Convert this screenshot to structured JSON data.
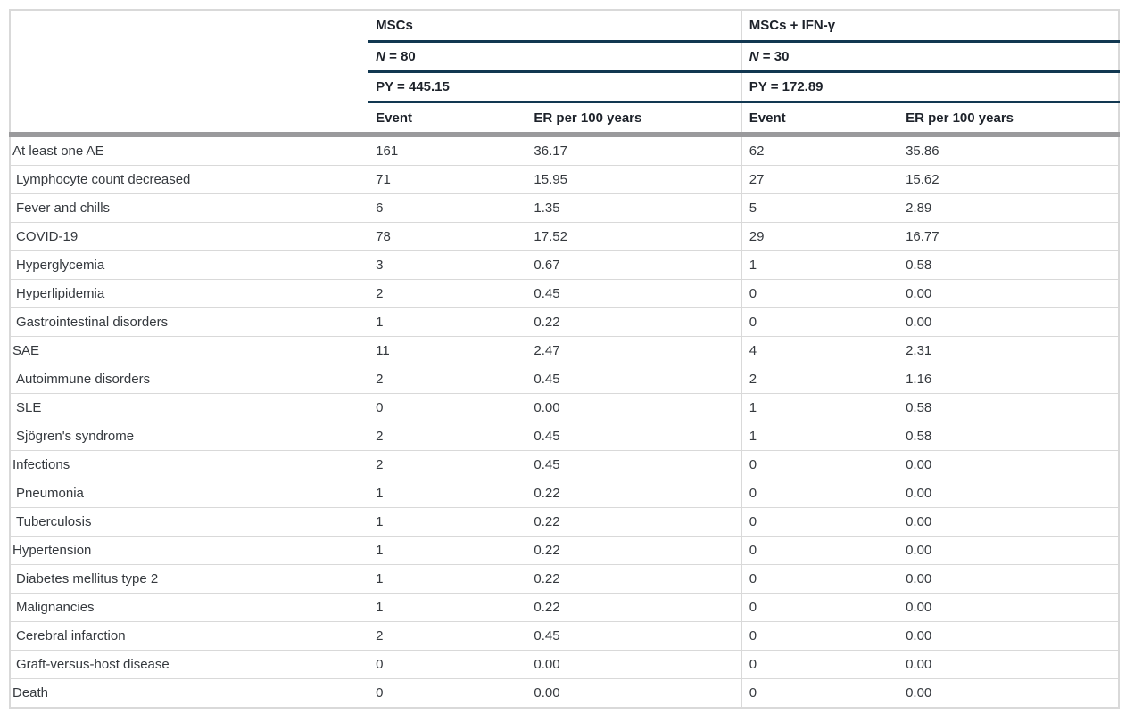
{
  "colors": {
    "rule_navy": "#123851",
    "rule_thick_gray": "#9a9a9c",
    "grid_light_gray": "#d9d9d9",
    "header_text": "#1d222a",
    "body_text": "#35393e"
  },
  "header": {
    "groups": [
      {
        "title": "MSCs",
        "n_italic": "N",
        "n_rest": " = 80",
        "py": "PY = 445.15",
        "event_label": "Event",
        "er_label": "ER per 100 years"
      },
      {
        "title": "MSCs + IFN-γ",
        "n_italic": "N",
        "n_rest": " = 30",
        "py": "PY = 172.89",
        "event_label": "Event",
        "er_label": "ER per 100 years"
      }
    ]
  },
  "rows": [
    {
      "label": "At least one AE",
      "indent": 0,
      "msc_event": "161",
      "msc_er": "36.17",
      "ifn_event": "62",
      "ifn_er": "35.86"
    },
    {
      "label": "Lymphocyte count decreased",
      "indent": 1,
      "msc_event": "71",
      "msc_er": "15.95",
      "ifn_event": "27",
      "ifn_er": "15.62"
    },
    {
      "label": "Fever and chills",
      "indent": 1,
      "msc_event": "6",
      "msc_er": "1.35",
      "ifn_event": "5",
      "ifn_er": "2.89"
    },
    {
      "label": "COVID-19",
      "indent": 1,
      "msc_event": "78",
      "msc_er": "17.52",
      "ifn_event": "29",
      "ifn_er": "16.77"
    },
    {
      "label": "Hyperglycemia",
      "indent": 1,
      "msc_event": "3",
      "msc_er": "0.67",
      "ifn_event": "1",
      "ifn_er": "0.58"
    },
    {
      "label": "Hyperlipidemia",
      "indent": 1,
      "msc_event": "2",
      "msc_er": "0.45",
      "ifn_event": "0",
      "ifn_er": "0.00"
    },
    {
      "label": "Gastrointestinal disorders",
      "indent": 1,
      "msc_event": "1",
      "msc_er": "0.22",
      "ifn_event": "0",
      "ifn_er": "0.00"
    },
    {
      "label": "SAE",
      "indent": 0,
      "msc_event": "11",
      "msc_er": "2.47",
      "ifn_event": "4",
      "ifn_er": "2.31"
    },
    {
      "label": "Autoimmune disorders",
      "indent": 1,
      "msc_event": "2",
      "msc_er": "0.45",
      "ifn_event": "2",
      "ifn_er": "1.16"
    },
    {
      "label": "SLE",
      "indent": 1,
      "msc_event": "0",
      "msc_er": "0.00",
      "ifn_event": "1",
      "ifn_er": "0.58"
    },
    {
      "label": "Sjögren's syndrome",
      "indent": 1,
      "msc_event": "2",
      "msc_er": "0.45",
      "ifn_event": "1",
      "ifn_er": "0.58"
    },
    {
      "label": "Infections",
      "indent": 0,
      "msc_event": "2",
      "msc_er": "0.45",
      "ifn_event": "0",
      "ifn_er": "0.00"
    },
    {
      "label": "Pneumonia",
      "indent": 1,
      "msc_event": "1",
      "msc_er": "0.22",
      "ifn_event": "0",
      "ifn_er": "0.00"
    },
    {
      "label": "Tuberculosis",
      "indent": 1,
      "msc_event": "1",
      "msc_er": "0.22",
      "ifn_event": "0",
      "ifn_er": "0.00"
    },
    {
      "label": "Hypertension",
      "indent": 0,
      "msc_event": "1",
      "msc_er": "0.22",
      "ifn_event": "0",
      "ifn_er": "0.00"
    },
    {
      "label": "Diabetes mellitus type 2",
      "indent": 1,
      "msc_event": "1",
      "msc_er": "0.22",
      "ifn_event": "0",
      "ifn_er": "0.00"
    },
    {
      "label": "Malignancies",
      "indent": 1,
      "msc_event": "1",
      "msc_er": "0.22",
      "ifn_event": "0",
      "ifn_er": "0.00"
    },
    {
      "label": "Cerebral infarction",
      "indent": 1,
      "msc_event": "2",
      "msc_er": "0.45",
      "ifn_event": "0",
      "ifn_er": "0.00"
    },
    {
      "label": "Graft-versus-host disease",
      "indent": 1,
      "msc_event": "0",
      "msc_er": "0.00",
      "ifn_event": "0",
      "ifn_er": "0.00"
    },
    {
      "label": "Death",
      "indent": 0,
      "msc_event": "0",
      "msc_er": "0.00",
      "ifn_event": "0",
      "ifn_er": "0.00"
    }
  ]
}
